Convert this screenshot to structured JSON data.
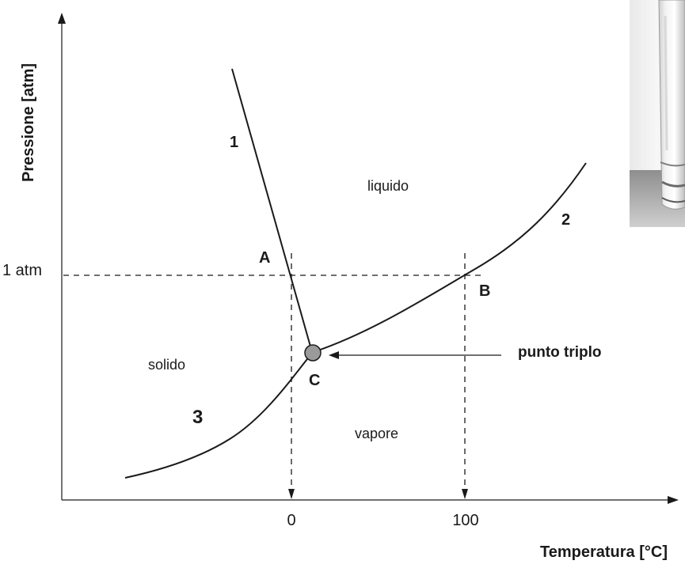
{
  "axes": {
    "y_label": "Pressione [atm]",
    "x_label": "Temperatura [°C]",
    "y_tick": "1 atm",
    "x_ticks": [
      "0",
      "100"
    ]
  },
  "regions": {
    "liquid": "liquido",
    "solid": "solido",
    "vapor": "vapore"
  },
  "points": {
    "a": "A",
    "b": "B",
    "c": "C"
  },
  "curves": {
    "c1": "1",
    "c2": "2",
    "c3": "3"
  },
  "annotation": {
    "triple_point": "punto triplo"
  },
  "colors": {
    "line": "#1a1a1a",
    "triple_point_fill": "#9a9a9a"
  }
}
